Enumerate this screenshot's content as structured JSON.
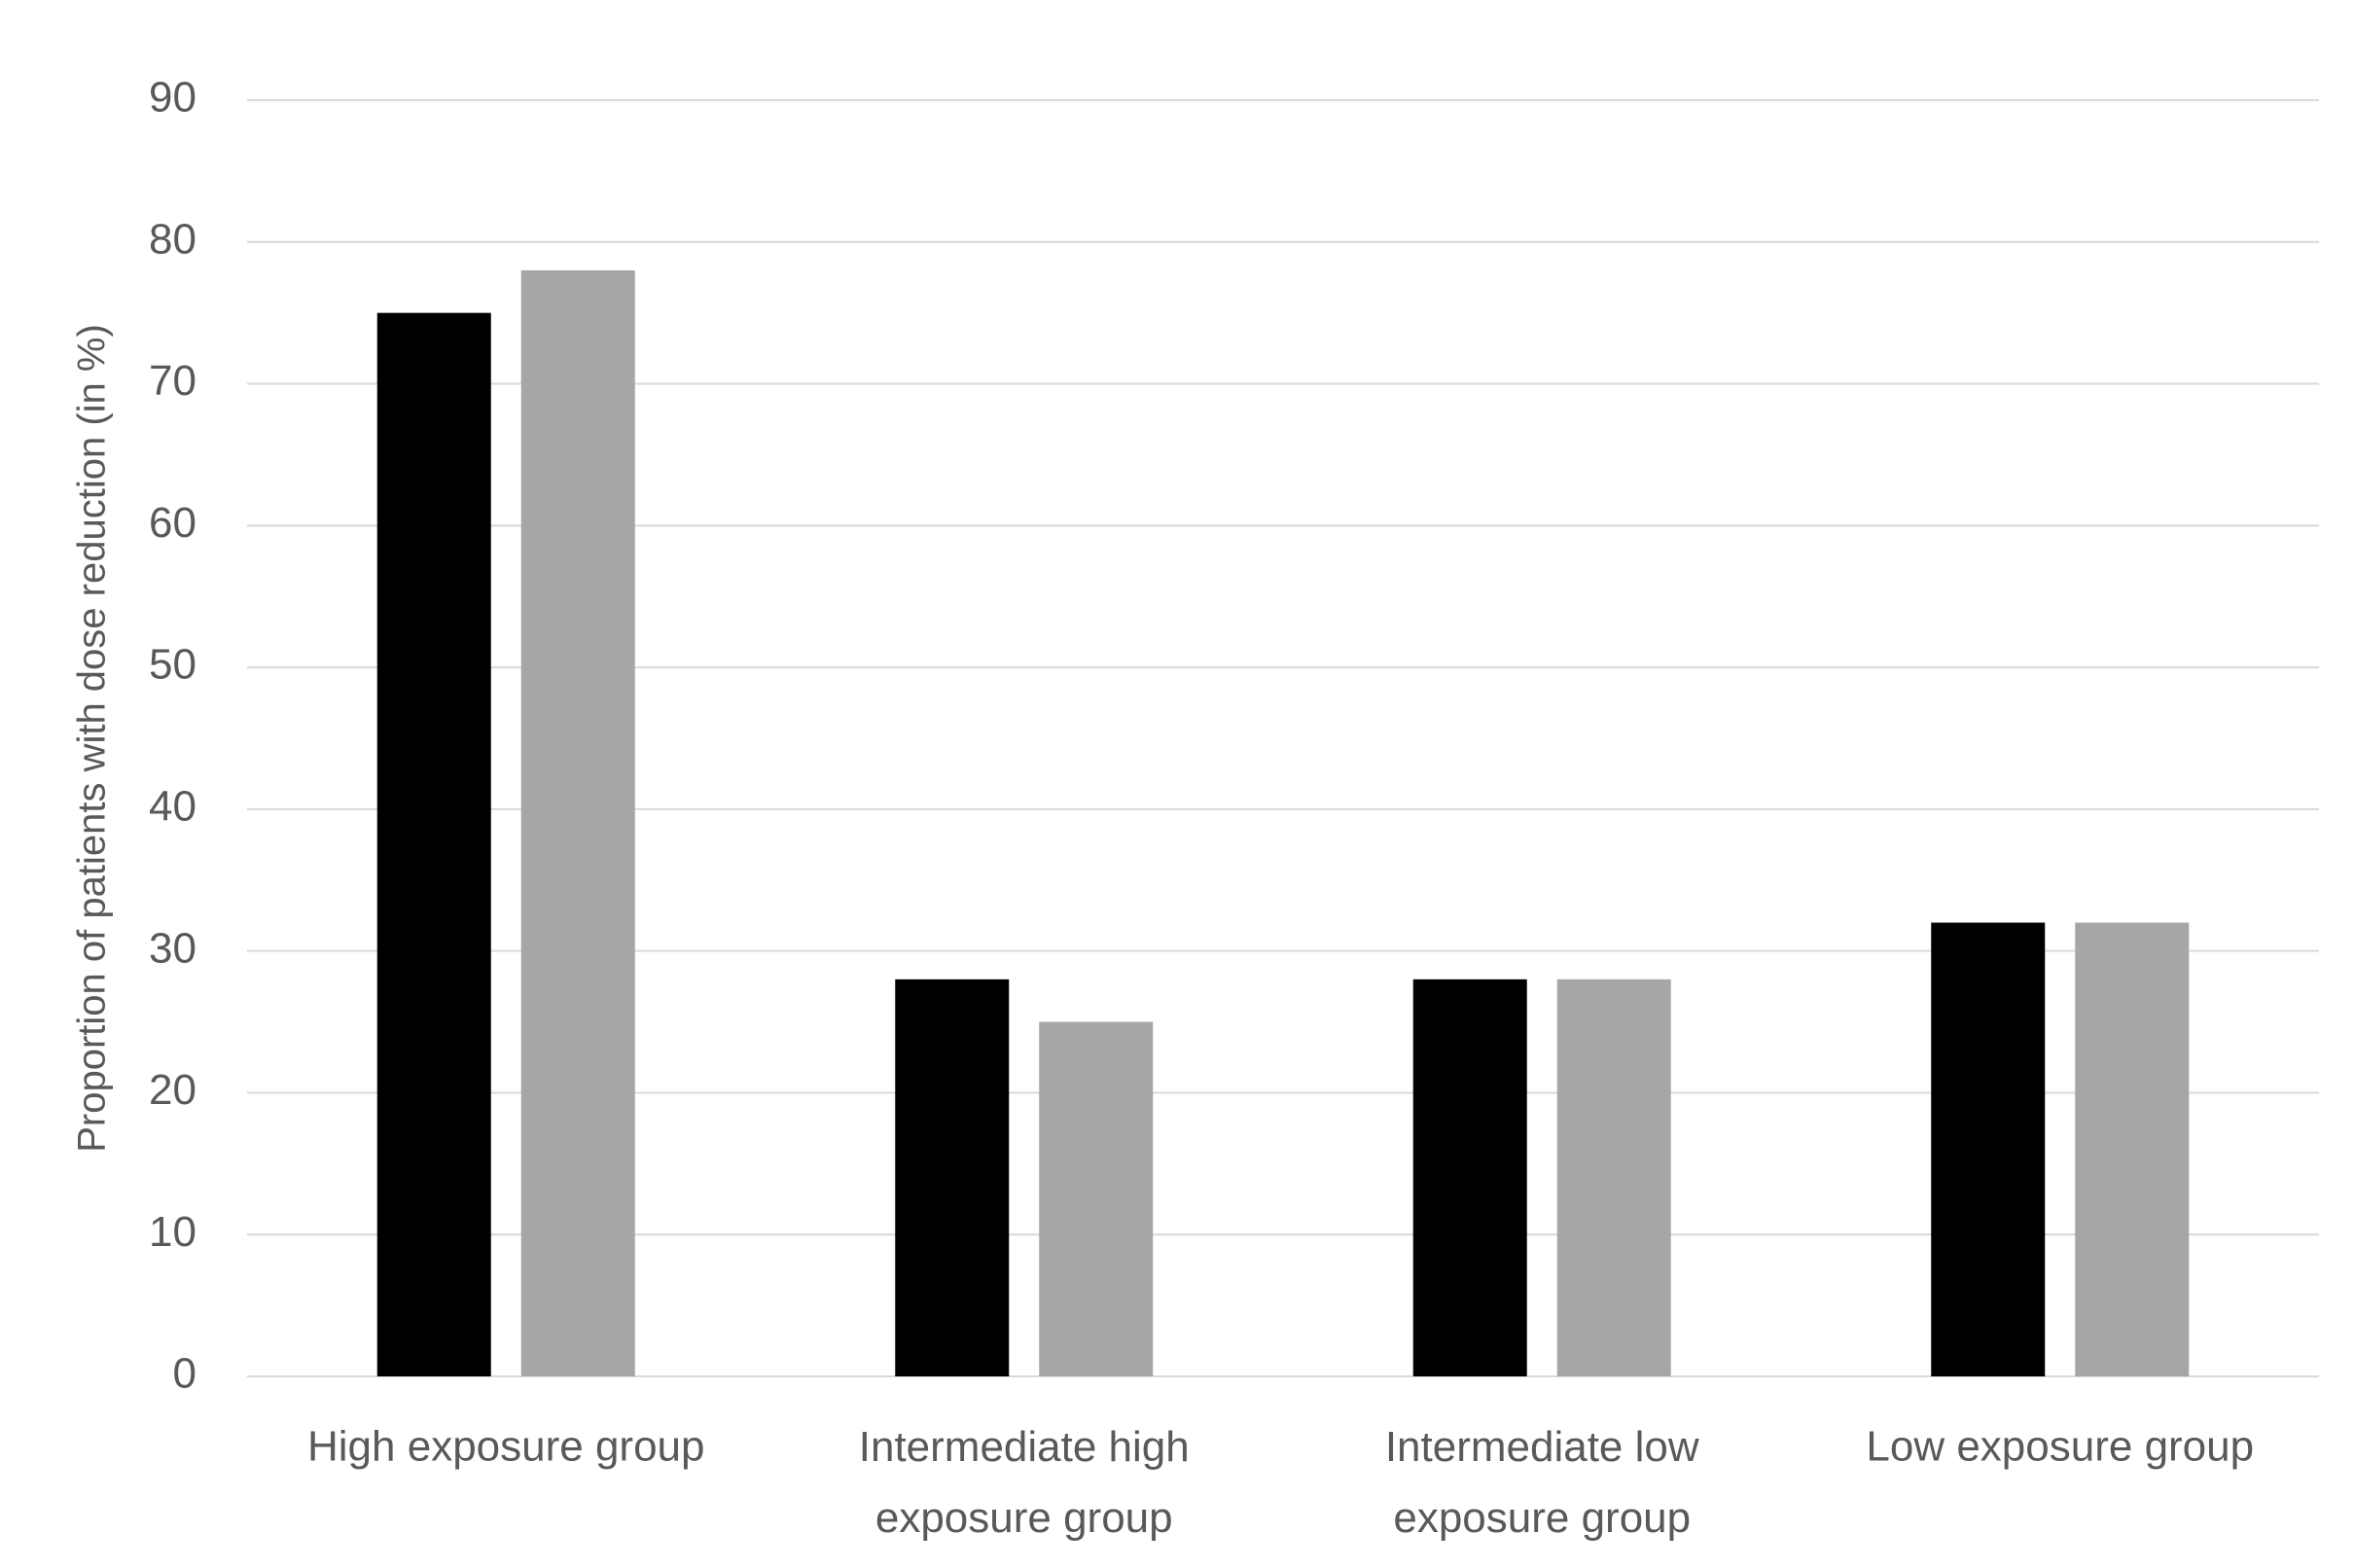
{
  "chart_data": {
    "type": "bar",
    "y_label": "Proportion of patients with dose reduction (in %)",
    "categories": [
      "High exposure group",
      "Intermediate high exposure group",
      "Intermediate low exposure group",
      "Low exposure group"
    ],
    "series": [
      {
        "color": "#000000",
        "values": [
          75,
          28,
          28,
          32
        ]
      },
      {
        "color": "#a6a6a6",
        "values": [
          78,
          25,
          28,
          32
        ]
      }
    ],
    "ylim": [
      0,
      90
    ],
    "yticks": [
      0,
      10,
      20,
      30,
      40,
      50,
      60,
      70,
      80,
      90
    ],
    "grid": true
  }
}
